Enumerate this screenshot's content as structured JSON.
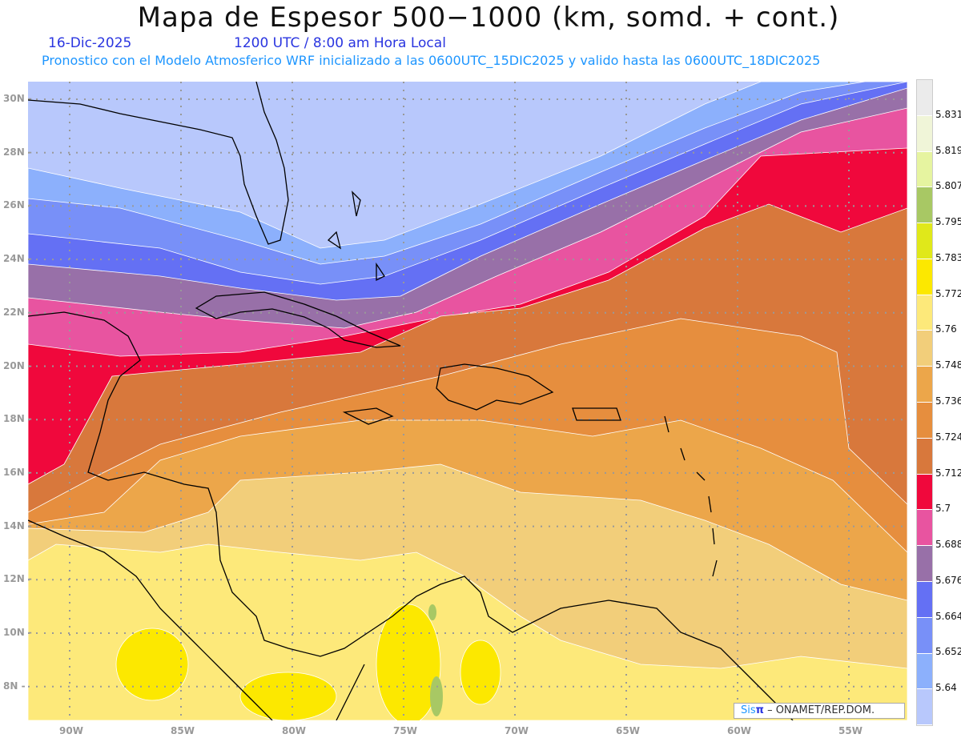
{
  "header": {
    "title": "Mapa de Espesor 500−1000 (km, somd. + cont.)",
    "date": "16-Dic-2025",
    "time": "1200 UTC / 8:00 am Hora Local",
    "subtitle": "Pronostico con el Modelo Atmosferico WRF inicializado a las 0600UTC_15DIC2025 y valido hasta las  0600UTC_18DIC2025"
  },
  "axes": {
    "lon_labels": [
      "90W",
      "85W",
      "80W",
      "75W",
      "70W",
      "65W",
      "60W",
      "55W"
    ],
    "lat_labels": [
      "30N",
      "28N",
      "26N",
      "24N",
      "22N",
      "20N",
      "18N",
      "16N",
      "14N",
      "12N",
      "10N",
      "8N"
    ]
  },
  "colorbar": {
    "colors": [
      "#ebebeb",
      "#f0f5d8",
      "#e6f4a0",
      "#a8c864",
      "#e0e81a",
      "#fce800",
      "#fde97a",
      "#f2ce7a",
      "#eca64a",
      "#e68e3e",
      "#d8783c",
      "#f0083c",
      "#e854a0",
      "#9870a8",
      "#6470f4",
      "#7890f8",
      "#8cb0fc",
      "#b8c8fc"
    ],
    "levels": [
      "5.831",
      "5.819",
      "5.807",
      "5.795",
      "5.783",
      "5.772",
      "5.76",
      "5.748",
      "5.736",
      "5.724",
      "5.712",
      "5.7",
      "5.688",
      "5.676",
      "5.664",
      "5.652",
      "5.64"
    ]
  },
  "credit": {
    "sis": "Sis",
    "pi": "π",
    "rest": " –  ONAMET/REP.DOM."
  }
}
